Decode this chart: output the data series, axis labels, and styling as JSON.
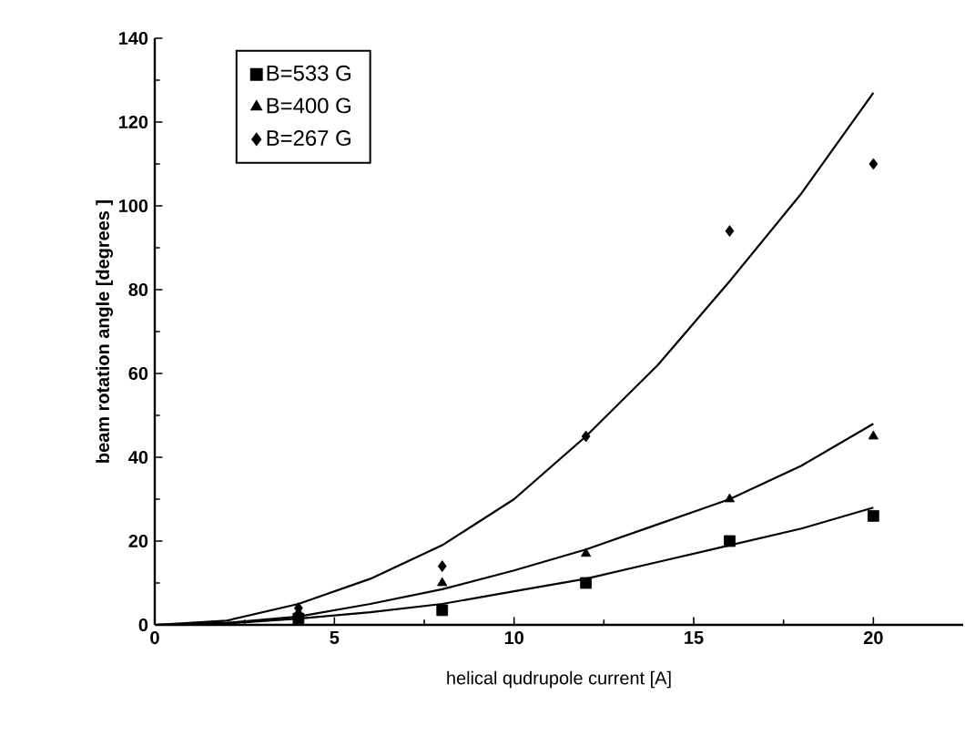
{
  "chart_data": {
    "type": "scatter",
    "xlabel": "helical qudrupole current [A]",
    "ylabel": "beam rotation angle [degrees ]",
    "xlim": [
      0,
      22.5
    ],
    "ylim": [
      0,
      140
    ],
    "xticks": [
      0,
      5,
      10,
      15,
      20
    ],
    "yticks": [
      0,
      20,
      40,
      60,
      80,
      100,
      120,
      140
    ],
    "legend": "top left",
    "grid": false,
    "series": [
      {
        "name": "B=533 G",
        "marker": "square",
        "color": "#000000",
        "x": [
          4,
          8,
          12,
          16,
          20
        ],
        "values": [
          1.5,
          3.5,
          10,
          20,
          26
        ]
      },
      {
        "name": "B=400 G",
        "marker": "triangle",
        "color": "#000000",
        "x": [
          4,
          8,
          12,
          16,
          20
        ],
        "values": [
          3,
          10,
          17,
          30,
          45
        ]
      },
      {
        "name": "B=267 G",
        "marker": "diamond",
        "color": "#000000",
        "x": [
          4,
          8,
          12,
          16,
          20
        ],
        "values": [
          4,
          14,
          45,
          94,
          110
        ]
      },
      {
        "type": "line",
        "marker": "none",
        "color": "#000000",
        "x": [
          0,
          2,
          4,
          6,
          8,
          10,
          12,
          14,
          16,
          18,
          20
        ],
        "values": [
          0,
          0.3,
          1.5,
          3,
          5,
          8,
          11,
          15,
          19,
          23,
          28
        ]
      },
      {
        "type": "line",
        "marker": "none",
        "color": "#000000",
        "x": [
          0,
          2,
          4,
          6,
          8,
          10,
          12,
          14,
          16,
          18,
          20
        ],
        "values": [
          0,
          0.5,
          2,
          5,
          8.5,
          13,
          18,
          24,
          30,
          38,
          48
        ]
      },
      {
        "type": "line",
        "marker": "none",
        "color": "#000000",
        "x": [
          0,
          2,
          4,
          6,
          8,
          10,
          12,
          14,
          16,
          18,
          20
        ],
        "values": [
          0,
          1,
          5,
          11,
          19,
          30,
          45,
          62,
          82,
          103,
          127
        ]
      }
    ]
  }
}
